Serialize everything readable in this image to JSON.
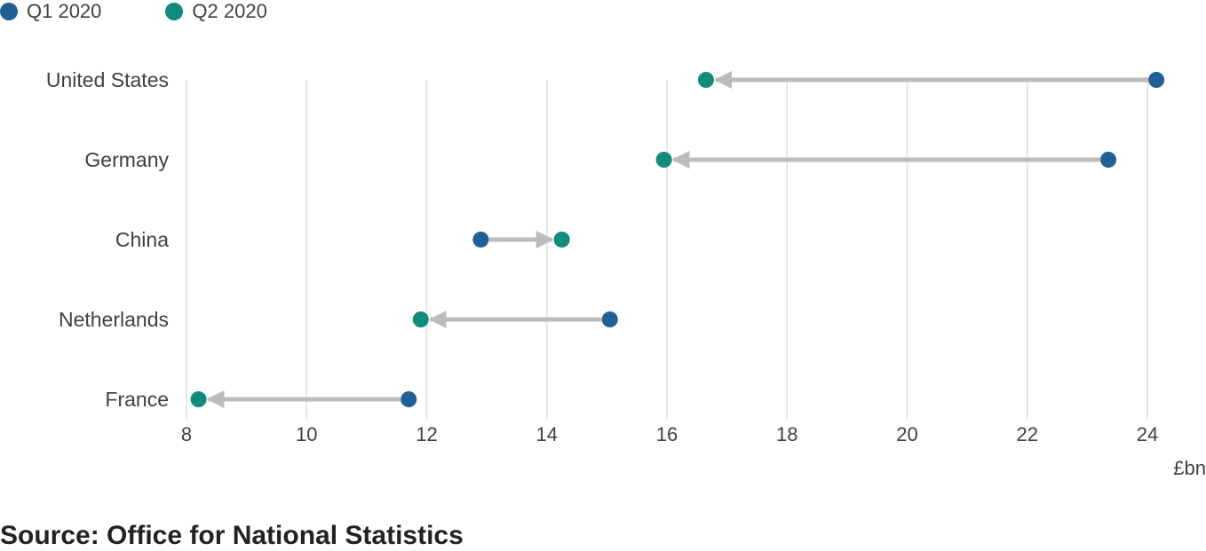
{
  "chart_data": {
    "type": "dumbbell",
    "series": [
      {
        "name": "Q1 2020",
        "color": "#206095"
      },
      {
        "name": "Q2 2020",
        "color": "#118c7b"
      }
    ],
    "categories": [
      "United States",
      "Germany",
      "China",
      "Netherlands",
      "France"
    ],
    "values": {
      "Q1 2020": [
        24.15,
        23.35,
        12.9,
        15.05,
        11.7
      ],
      "Q2 2020": [
        16.65,
        15.95,
        14.25,
        11.9,
        8.2
      ]
    },
    "x_ticks": [
      "8",
      "10",
      "12",
      "14",
      "16",
      "18",
      "20",
      "22",
      "24"
    ],
    "xlim": [
      8,
      24
    ],
    "x_unit": "£bn",
    "grid": "vertical",
    "arrow_color": "#bcbcbc",
    "legend_position": "top-left"
  },
  "source": "Source: Office for National Statistics"
}
